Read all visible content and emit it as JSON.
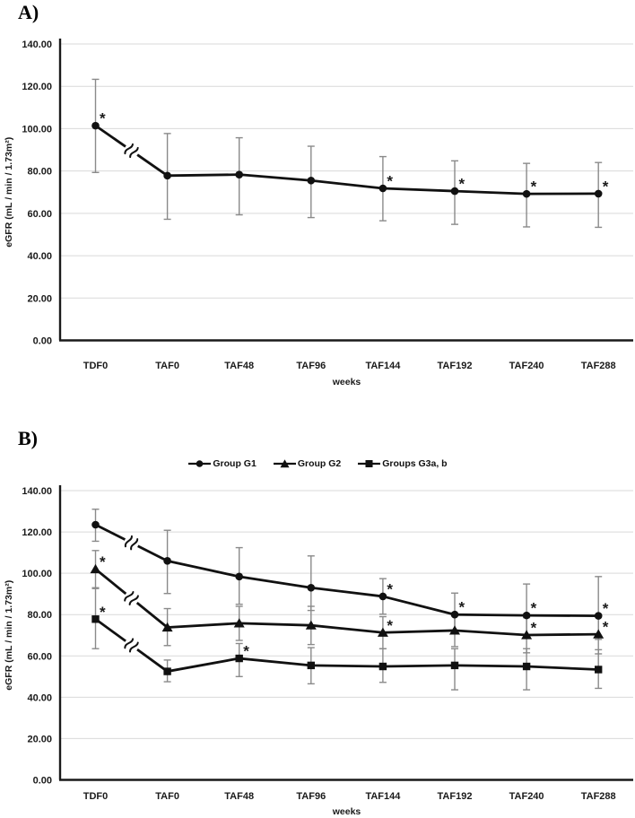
{
  "colors": {
    "line": "#111111",
    "marker": "#111111",
    "error_bar": "#8a8a8a",
    "gridline": "#d9d9d9",
    "axis": "#1a1a1a",
    "text": "#1a1a1a"
  },
  "chart_data": [
    {
      "panel_label": "A)",
      "type": "line",
      "title": "",
      "xlabel": "weeks",
      "ylabel": "eGFR (mL / min / 1.73m²)",
      "ylim": [
        0,
        140
      ],
      "ytick_step": 20,
      "y_ticks": [
        "140.00",
        "120.00",
        "100.00",
        "80.00",
        "60.00",
        "40.00",
        "20.00",
        "0.00"
      ],
      "grid": true,
      "legend_position": "none",
      "axis_break_after_first_point": true,
      "categories": [
        "TDF0",
        "TAF0",
        "TAF48",
        "TAF96",
        "TAF144",
        "TAF192",
        "TAF240",
        "TAF288"
      ],
      "series": [
        {
          "name": "eGFR",
          "marker": "circle",
          "values": [
            101.4,
            77.8,
            78.3,
            75.5,
            71.8,
            70.5,
            69.2,
            69.3
          ],
          "err_low": [
            79.3,
            57.2,
            59.3,
            58.0,
            56.5,
            54.8,
            53.6,
            53.4
          ],
          "err_high": [
            123.3,
            97.7,
            95.7,
            91.7,
            86.8,
            84.8,
            83.6,
            84.0
          ],
          "significant": [
            true,
            false,
            false,
            false,
            true,
            true,
            true,
            true
          ]
        }
      ]
    },
    {
      "panel_label": "B)",
      "type": "line",
      "title": "",
      "xlabel": "weeks",
      "ylabel": "eGFR (mL / min / 1.73m²)",
      "ylim": [
        0,
        140
      ],
      "ytick_step": 20,
      "y_ticks": [
        "140.00",
        "120.00",
        "100.00",
        "80.00",
        "60.00",
        "40.00",
        "20.00",
        "0.00"
      ],
      "grid": true,
      "legend_position": "top",
      "axis_break_after_first_point": true,
      "categories": [
        "TDF0",
        "TAF0",
        "TAF48",
        "TAF96",
        "TAF144",
        "TAF192",
        "TAF240",
        "TAF288"
      ],
      "series": [
        {
          "name": "Group G1",
          "marker": "circle",
          "values": [
            123.5,
            106.0,
            98.4,
            93.0,
            88.8,
            80.0,
            79.6,
            79.4
          ],
          "err_low": [
            115.5,
            90.2,
            85.0,
            82.0,
            80.2,
            72.0,
            70.0,
            68.0
          ],
          "err_high": [
            131.0,
            120.8,
            112.4,
            108.4,
            97.4,
            90.4,
            94.8,
            98.4
          ],
          "significant": [
            false,
            false,
            false,
            false,
            true,
            true,
            true,
            true
          ]
        },
        {
          "name": "Group G2",
          "marker": "triangle",
          "values": [
            102.0,
            73.8,
            75.8,
            74.8,
            71.3,
            72.3,
            70.1,
            70.5
          ],
          "err_low": [
            93.0,
            65.0,
            67.5,
            65.5,
            63.5,
            64.5,
            61.5,
            61.0
          ],
          "err_high": [
            111.0,
            82.9,
            84.0,
            84.0,
            79.0,
            80.0,
            78.5,
            80.0
          ],
          "significant": [
            true,
            false,
            false,
            false,
            true,
            false,
            true,
            true
          ]
        },
        {
          "name": "Groups G3a, b",
          "marker": "square",
          "values": [
            77.8,
            52.5,
            58.8,
            55.4,
            54.9,
            55.4,
            54.9,
            53.4
          ],
          "err_low": [
            63.5,
            47.5,
            50.0,
            46.5,
            47.2,
            43.6,
            43.6,
            44.3
          ],
          "err_high": [
            92.6,
            58.0,
            66.0,
            64.0,
            63.5,
            63.5,
            63.5,
            63.0
          ],
          "significant": [
            true,
            false,
            true,
            false,
            false,
            false,
            false,
            false
          ]
        }
      ]
    }
  ]
}
